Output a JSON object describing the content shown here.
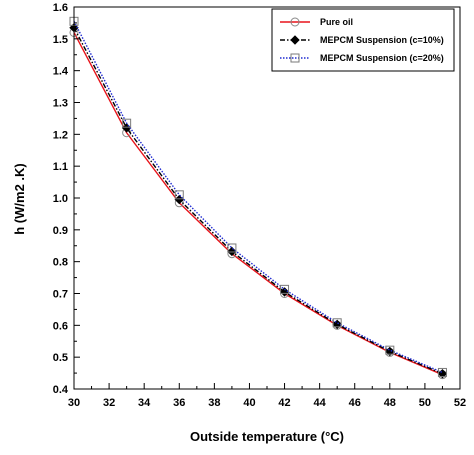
{
  "chart_data": {
    "type": "line",
    "xlabel": "Outside temperature (°C)",
    "ylabel": "h (W/m2 .K)",
    "xlim": [
      30,
      52
    ],
    "ylim": [
      0.4,
      1.6
    ],
    "x_ticks": [
      30,
      32,
      34,
      36,
      38,
      40,
      42,
      44,
      46,
      48,
      50,
      52
    ],
    "y_ticks": [
      0.4,
      0.5,
      0.6,
      0.7,
      0.8,
      0.9,
      1.0,
      1.1,
      1.2,
      1.3,
      1.4,
      1.5,
      1.6
    ],
    "x_tick_labels": [
      "30",
      "32",
      "34",
      "36",
      "38",
      "40",
      "42",
      "44",
      "46",
      "48",
      "50",
      "52"
    ],
    "y_tick_labels": [
      "0.4",
      "0.5",
      "0.6",
      "0.7",
      "0.8",
      "0.9",
      "1.0",
      "1.1",
      "1.2",
      "1.3",
      "1.4",
      "1.5",
      "1.6"
    ],
    "grid": false,
    "legend_position": "top-right",
    "x": [
      30,
      33,
      36,
      39,
      42,
      45,
      48,
      51
    ],
    "series": [
      {
        "name": "Pure oil",
        "values": [
          1.52,
          1.205,
          0.985,
          0.825,
          0.7,
          0.6,
          0.515,
          0.445
        ],
        "color": "#e8141b",
        "line_style": "solid",
        "marker": "circle"
      },
      {
        "name": "MEPCM Suspension (c=10%)",
        "values": [
          1.535,
          1.22,
          0.995,
          0.832,
          0.705,
          0.603,
          0.518,
          0.448
        ],
        "color": "#000000",
        "line_style": "dash-dot",
        "marker": "diamond"
      },
      {
        "name": "MEPCM Suspension (c=20%)",
        "values": [
          1.555,
          1.235,
          1.01,
          0.843,
          0.713,
          0.608,
          0.522,
          0.452
        ],
        "color": "#1f2bd1",
        "line_style": "dotted",
        "marker": "square"
      }
    ]
  }
}
